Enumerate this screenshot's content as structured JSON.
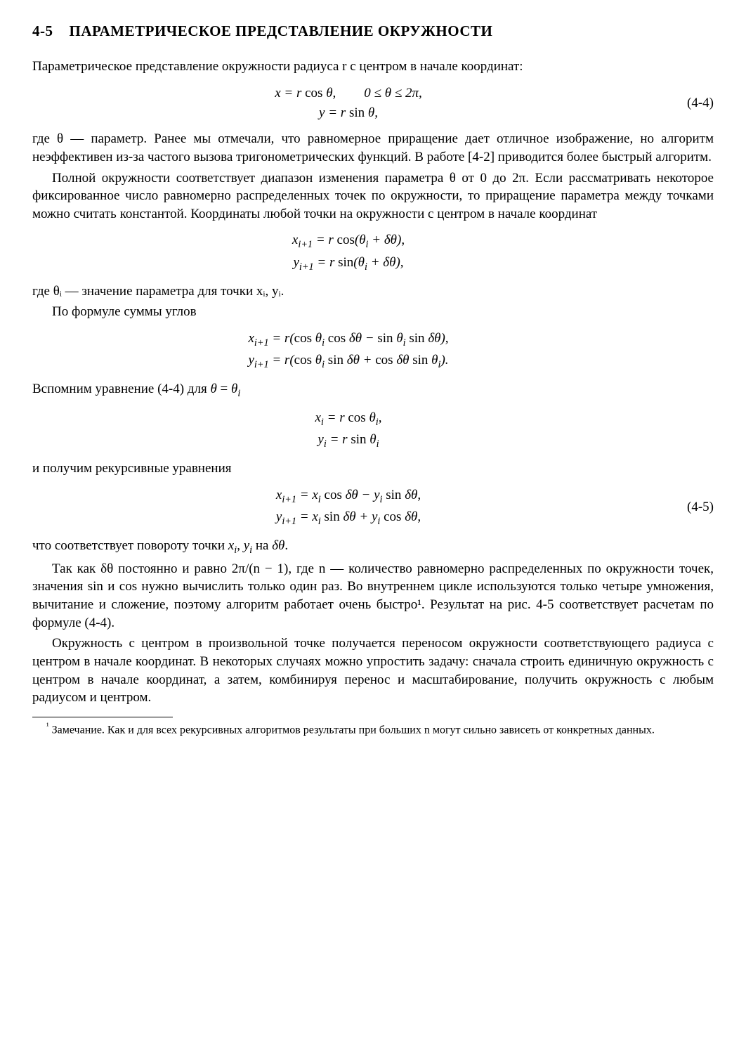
{
  "section": {
    "number": "4-5",
    "title": "ПАРАМЕТРИЧЕСКОЕ ПРЕДСТАВЛЕНИЕ ОКРУЖНОСТИ"
  },
  "paragraphs": {
    "p1": "Параметрическое представление окружности радиуса r с центром в начале координат:",
    "p2": "где θ — параметр. Ранее мы отмечали, что равномерное приращение дает отличное изображение, но алгоритм неэффективен из-за частого вызова тригонометрических функций. В работе [4-2] приводится более быстрый алгоритм.",
    "p3": "Полной окружности соответствует диапазон изменения параметра θ от 0 до 2π. Если рассматривать некоторое фиксированное число равномерно распределенных точек по окружности, то приращение параметра между точками можно считать константой. Координаты любой точки на окружности с центром в начале координат",
    "p4": "где θᵢ — значение параметра для точки xᵢ, yᵢ.",
    "p5": "По формуле суммы углов",
    "p6": "Вспомним уравнение (4-4) для θ = θᵢ",
    "p7": "и получим рекурсивные уравнения",
    "p8": "что соответствует повороту точки xᵢ, yᵢ на δθ.",
    "p9": "Так как δθ постоянно и равно 2π/(n − 1), где n — количество равномерно распределенных по окружности точек, значения sin и cos нужно вычислить только один раз. Во внутреннем цикле используются только четыре умножения, вычитание и сложение, поэтому алгоритм работает очень быстро¹. Результат на рис. 4-5 соответствует расчетам по формуле (4-4).",
    "p10": "Окружность с центром в произвольной точке получается переносом окружности соответствующего радиуса с центром в начале координат. В некоторых случаях можно упростить задачу: сначала строить единичную окружность с центром в начале координат, а затем, комбинируя перенос и масштабирование, получить окружность с любым радиусом и центром."
  },
  "equations": {
    "eq44": {
      "line1": "x = r cos θ,        0 ≤ θ ≤ 2π,",
      "line2": "y = r sin θ,",
      "label": "(4-4)"
    },
    "eqA": {
      "line1": "xᵢ₊₁ = r cos(θᵢ + δθ),",
      "line2": "yᵢ₊₁ = r sin(θᵢ + δθ),"
    },
    "eqB": {
      "line1": "xᵢ₊₁ = r(cos θᵢ cos δθ − sin θᵢ sin δθ),",
      "line2": "yᵢ₊₁ = r(cos θᵢ sin δθ + cos δθ sin θᵢ)."
    },
    "eqC": {
      "line1": "xᵢ = r cos θᵢ,",
      "line2": "yᵢ = r sin θᵢ"
    },
    "eq45": {
      "line1": "xᵢ₊₁ = xᵢ cos δθ − yᵢ sin δθ,",
      "line2": "yᵢ₊₁ = xᵢ sin δθ + yᵢ cos δθ,",
      "label": "(4-5)"
    }
  },
  "footnote": {
    "marker": "¹",
    "text": " Замечание. Как и для всех рекурсивных алгоритмов результаты при больших n могут сильно зависеть от конкретных данных."
  }
}
